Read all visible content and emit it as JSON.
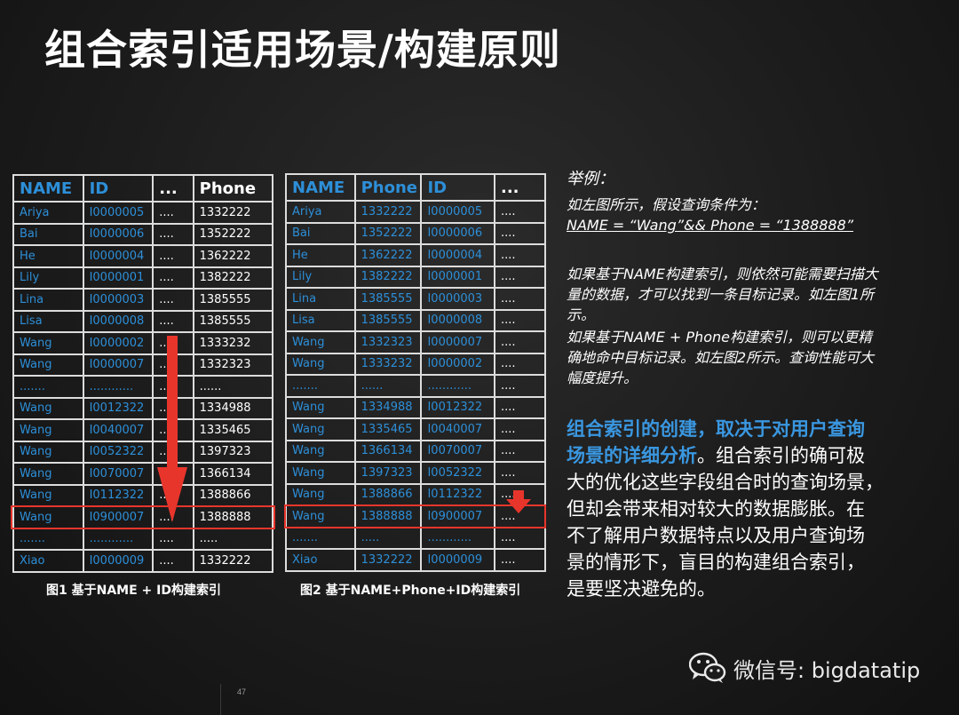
{
  "title": "组合索引适用场景/构建原则",
  "table1": {
    "headers": [
      "NAME",
      "ID",
      "...",
      "Phone"
    ],
    "rows": [
      [
        "Ariya",
        "I0000005",
        "....",
        "1332222"
      ],
      [
        "Bai",
        "I0000006",
        "....",
        "1352222"
      ],
      [
        "He",
        "I0000004",
        "....",
        "1362222"
      ],
      [
        "Lily",
        "I0000001",
        "....",
        "1382222"
      ],
      [
        "Lina",
        "I0000003",
        "....",
        "1385555"
      ],
      [
        "Lisa",
        "I0000008",
        "....",
        "1385555"
      ],
      [
        "Wang",
        "I0000002",
        "....",
        "1333232"
      ],
      [
        "Wang",
        "I0000007",
        "....",
        "1332323"
      ],
      [
        ".......",
        "............",
        "....",
        "......"
      ],
      [
        "Wang",
        "I0012322",
        "....",
        "1334988"
      ],
      [
        "Wang",
        "I0040007",
        "....",
        "1335465"
      ],
      [
        "Wang",
        "I0052322",
        "....",
        "1397323"
      ],
      [
        "Wang",
        "I0070007",
        "....",
        "1366134"
      ],
      [
        "Wang",
        "I0112322",
        "....",
        "1388866"
      ],
      [
        "Wang",
        "I0900007",
        "....",
        "1388888"
      ],
      [
        ".......",
        "............",
        "....",
        "....."
      ],
      [
        "Xiao",
        "I0000009",
        "....",
        "1332222"
      ]
    ],
    "caption": "图1  基于NAME + ID构建索引"
  },
  "table2": {
    "headers": [
      "NAME",
      "Phone",
      "ID",
      "..."
    ],
    "rows": [
      [
        "Ariya",
        "1332222",
        "I0000005",
        "...."
      ],
      [
        "Bai",
        "1352222",
        "I0000006",
        "...."
      ],
      [
        "He",
        "1362222",
        "I0000004",
        "...."
      ],
      [
        "Lily",
        "1382222",
        "I0000001",
        "...."
      ],
      [
        "Lina",
        "1385555",
        "I0000003",
        "...."
      ],
      [
        "Lisa",
        "1385555",
        "I0000008",
        "...."
      ],
      [
        "Wang",
        "1332323",
        "I0000007",
        "...."
      ],
      [
        "Wang",
        "1333232",
        "I0000002",
        "...."
      ],
      [
        ".......",
        "......",
        "............",
        "...."
      ],
      [
        "Wang",
        "1334988",
        "I0012322",
        "...."
      ],
      [
        "Wang",
        "1335465",
        "I0040007",
        "...."
      ],
      [
        "Wang",
        "1366134",
        "I0070007",
        "...."
      ],
      [
        "Wang",
        "1397323",
        "I0052322",
        "...."
      ],
      [
        "Wang",
        "1388866",
        "I0112322",
        "...."
      ],
      [
        "Wang",
        "1388888",
        "I0900007",
        "...."
      ],
      [
        ".......",
        ".....",
        "............",
        "...."
      ],
      [
        "Xiao",
        "1332222",
        "I0000009",
        "...."
      ]
    ],
    "caption": "图2  基于NAME+Phone+ID构建索引"
  },
  "example": {
    "heading": "举例：",
    "line1": "如左图所示，假设查询条件为：",
    "query": "NAME = “Wang”&& Phone = “1388888”",
    "para1_l1": "如果基于NAME构建索引，则依然可能需要扫描大",
    "para1_l2": "量的数据，才可以找到一条目标记录。如左图1所",
    "para1_l3": "示。",
    "para2_l1": "如果基于NAME + Phone构建索引，则可以更精",
    "para2_l2": "确地命中目标记录。如左图2所示。查询性能可大",
    "para2_l3": "幅度提升。"
  },
  "summary": {
    "highlight_l1": "组合索引的创建，取决于对用户查询",
    "highlight_l2": "场景的详细分析",
    "rest_l2": "。组合索引的确可极",
    "l3": "大的优化这些字段组合时的查询场景，",
    "l4": "但却会带来相对较大的数据膨胀。在",
    "l5": "不了解用户数据特点以及用户查询场",
    "l6": "景的情形下，盲目的构建组合索引，",
    "l7": "是要坚决避免的。"
  },
  "wechat_label": "微信号: bigdatatip",
  "page_number": "47",
  "colors": {
    "accent_blue": "#2d8fd8",
    "highlight_red": "#e8352c",
    "bg": "#1c1c1c"
  }
}
